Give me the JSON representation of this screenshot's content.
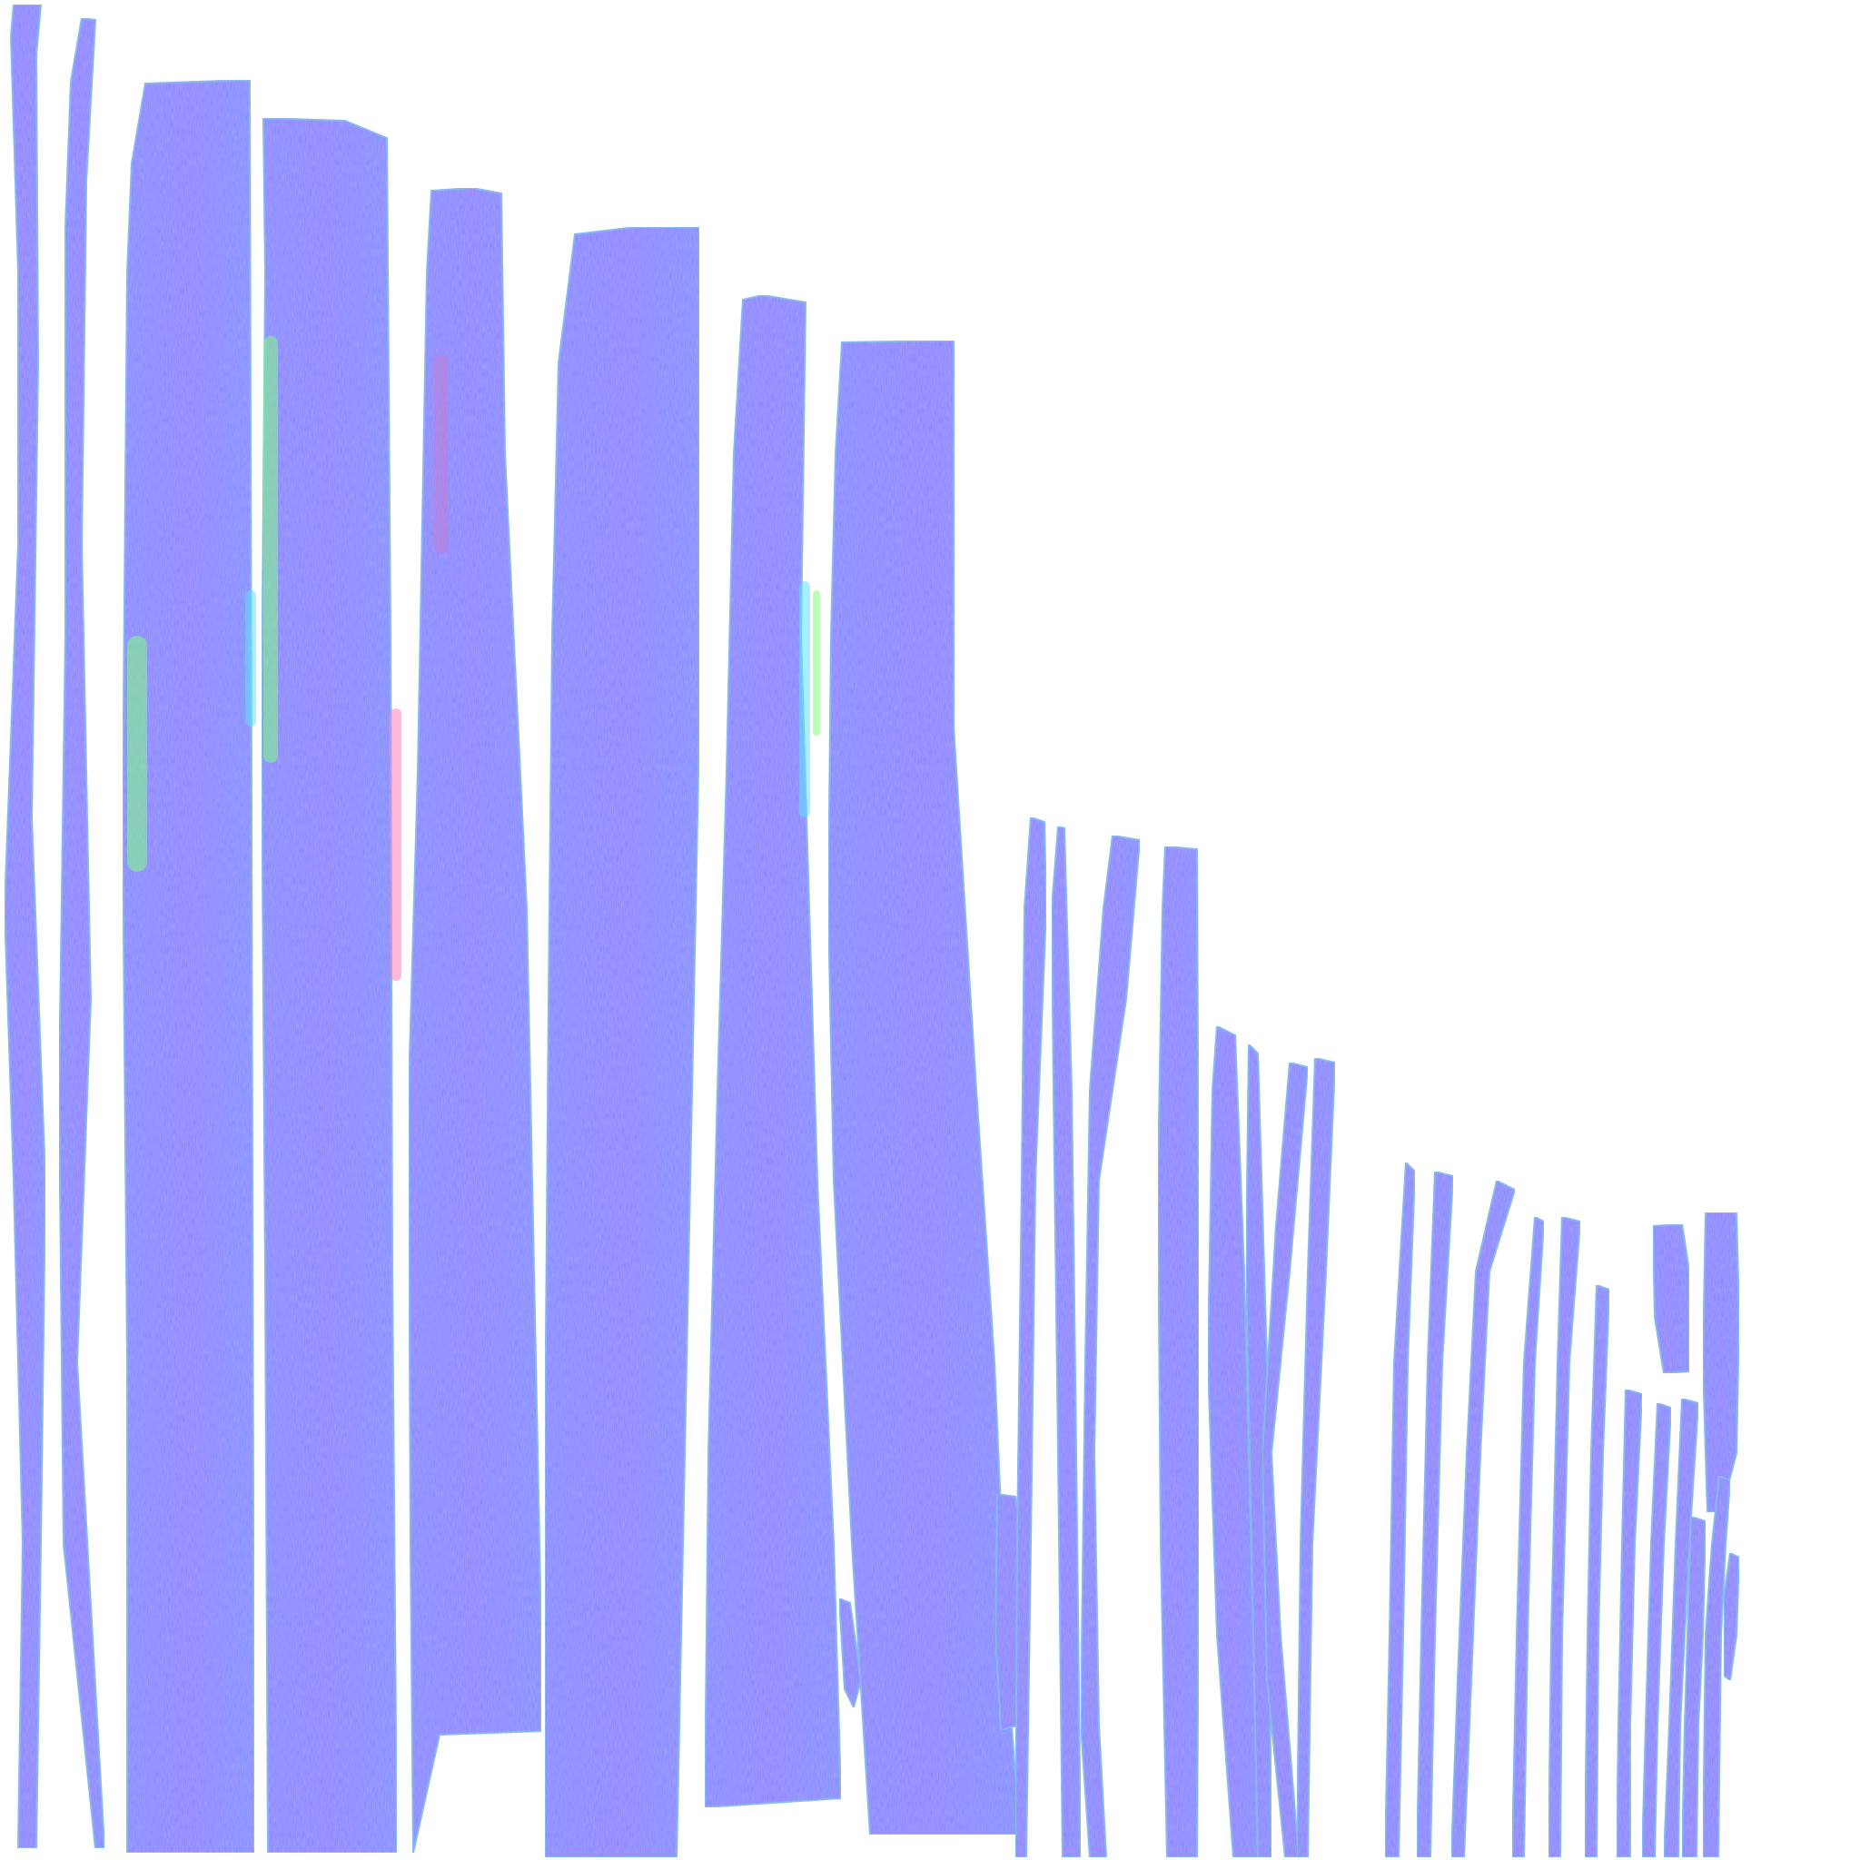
{
  "image": {
    "kind": "normal-map texture atlas",
    "background_color": "#ffffff",
    "base_color": "#8080ff",
    "edge_color": "#5fc8e0",
    "highlight_colors": [
      "#c07fd8",
      "#60e0ff",
      "#80ff80",
      "#ff80c0"
    ],
    "element_kind": "wood-plank UV islands"
  }
}
